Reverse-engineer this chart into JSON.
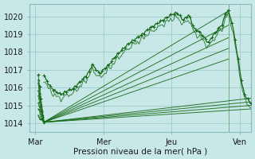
{
  "title": "",
  "xlabel": "Pression niveau de la mer( hPa )",
  "ylabel": "",
  "bg_color": "#c8e8e8",
  "grid_color": "#8ababa",
  "line_color": "#1a6b1a",
  "xlim": [
    0,
    78
  ],
  "ylim": [
    1013.5,
    1020.7
  ],
  "yticks": [
    1014,
    1015,
    1016,
    1017,
    1018,
    1019,
    1020
  ],
  "xtick_positions": [
    2,
    26,
    50,
    74
  ],
  "xtick_labels": [
    "Mar",
    "Mer",
    "Jeu",
    "Ven"
  ],
  "vline_x": 70,
  "fan_origin_x": 5,
  "fan_origin_y": 1014.05,
  "fan_upper_ends": [
    [
      70,
      1020.3
    ],
    [
      70,
      1019.5
    ],
    [
      70,
      1018.8
    ],
    [
      70,
      1018.2
    ],
    [
      70,
      1017.6
    ]
  ],
  "fan_lower_ends": [
    [
      78,
      1015.4
    ],
    [
      78,
      1015.2
    ],
    [
      78,
      1015.0
    ],
    [
      78,
      1014.8
    ]
  ]
}
